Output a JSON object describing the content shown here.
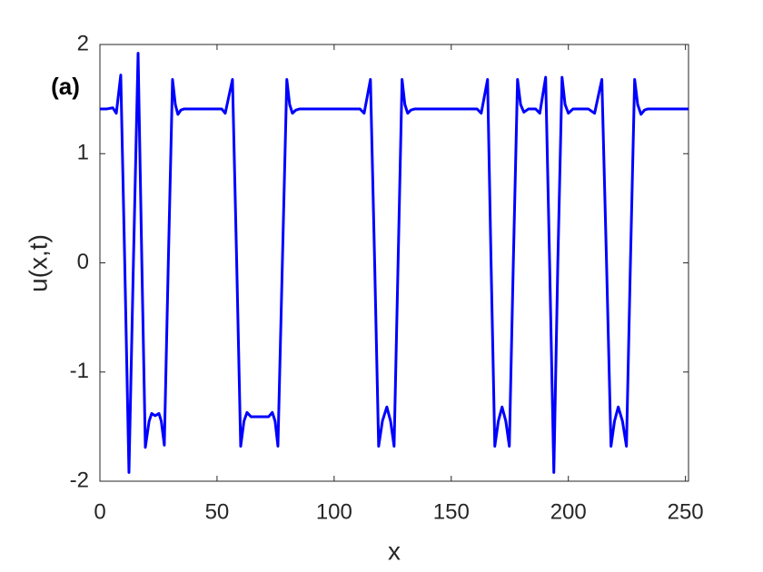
{
  "chart_data": {
    "type": "line",
    "panel_label": "(a)",
    "xlabel": "x",
    "ylabel": "u(x,t)",
    "color": "#0000ff",
    "x": [
      0,
      3,
      5.5,
      7,
      8.9,
      10.6,
      12.4,
      14.3,
      16.3,
      17.9,
      19.4,
      21,
      22.1,
      23.6,
      25.2,
      26.2,
      27.5,
      29.2,
      31,
      32.2,
      33.3,
      34.6,
      36,
      52,
      53.5,
      56.6,
      58.4,
      60.1,
      61.5,
      62.8,
      64.5,
      72,
      73.6,
      74.8,
      76,
      77.9,
      79.8,
      81,
      82.2,
      83.7,
      85.3,
      111,
      112.8,
      115.5,
      117.3,
      119,
      120.6,
      122.5,
      124.1,
      125.6,
      127.3,
      129,
      130.2,
      131.4,
      132.8,
      134.5,
      161,
      162.8,
      165.5,
      167,
      168.6,
      170.1,
      171.7,
      173.3,
      174.8,
      176.5,
      178.3,
      179.6,
      181,
      183,
      186,
      187.8,
      190.3,
      192,
      193.8,
      195.5,
      197.3,
      198.6,
      200,
      202,
      208.5,
      211.2,
      214.3,
      216.3,
      218.2,
      219.7,
      221.3,
      223.1,
      224.8,
      226.5,
      228.3,
      229.6,
      231,
      232.5,
      234,
      251.3
    ],
    "values": [
      1.41,
      1.41,
      1.42,
      1.37,
      1.72,
      0,
      -1.92,
      0,
      1.92,
      0,
      -1.69,
      -1.45,
      -1.38,
      -1.4,
      -1.38,
      -1.45,
      -1.67,
      0,
      1.68,
      1.45,
      1.36,
      1.4,
      1.41,
      1.41,
      1.37,
      1.68,
      0,
      -1.68,
      -1.45,
      -1.37,
      -1.41,
      -1.41,
      -1.37,
      -1.45,
      -1.68,
      0,
      1.68,
      1.45,
      1.37,
      1.4,
      1.41,
      1.41,
      1.37,
      1.68,
      0,
      -1.68,
      -1.45,
      -1.32,
      -1.45,
      -1.68,
      0,
      1.68,
      1.45,
      1.37,
      1.4,
      1.41,
      1.41,
      1.37,
      1.68,
      0,
      -1.68,
      -1.45,
      -1.32,
      -1.45,
      -1.68,
      0,
      1.68,
      1.45,
      1.38,
      1.41,
      1.41,
      1.37,
      1.7,
      0,
      -1.92,
      0,
      1.7,
      1.45,
      1.37,
      1.41,
      1.41,
      1.37,
      1.68,
      0,
      -1.68,
      -1.45,
      -1.32,
      -1.45,
      -1.68,
      0,
      1.68,
      1.45,
      1.36,
      1.4,
      1.41,
      1.41
    ],
    "xlim": [
      0,
      251.3
    ],
    "ylim": [
      -2,
      2
    ],
    "xticks": [
      0,
      50,
      100,
      150,
      200,
      250
    ],
    "yticks": [
      -2,
      -1,
      0,
      1,
      2
    ]
  }
}
